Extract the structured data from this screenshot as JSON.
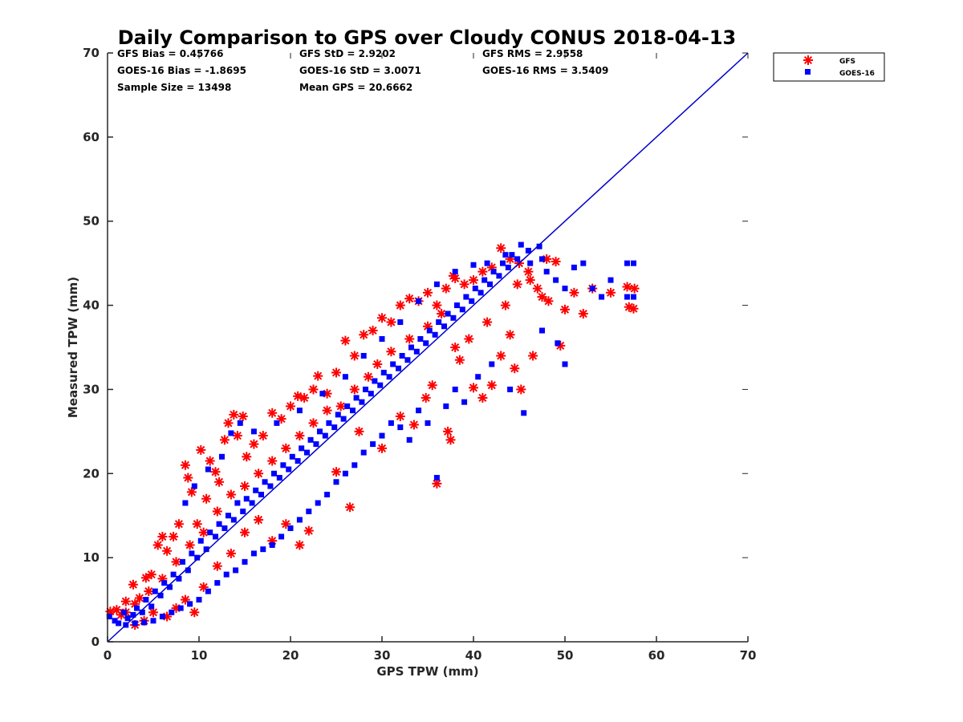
{
  "chart_data": {
    "type": "scatter",
    "title": "Daily Comparison to GPS over Cloudy CONUS 2018-04-13",
    "xlabel": "GPS TPW (mm)",
    "ylabel": "Measured TPW (mm)",
    "xlim": [
      0,
      70
    ],
    "ylim": [
      0,
      70
    ],
    "xticks": [
      "0",
      "10",
      "20",
      "30",
      "40",
      "50",
      "60",
      "70"
    ],
    "yticks": [
      "0",
      "10",
      "20",
      "30",
      "40",
      "50",
      "60",
      "70"
    ],
    "grid": false,
    "legend_position": "outside top-right",
    "stats": [
      "GFS Bias = 0.45766",
      "GFS StD = 2.9202",
      "GFS RMS = 2.9558",
      "GOES-16 Bias = -1.8695",
      "GOES-16 StD = 3.0071",
      "GOES-16 RMS = 3.5409",
      "Sample Size = 13498",
      "Mean GPS = 20.6662"
    ],
    "reference_line": {
      "x": [
        0,
        70
      ],
      "y": [
        0,
        70
      ],
      "color": "#0000cc"
    },
    "series": [
      {
        "name": "GFS",
        "marker": "asterisk",
        "color": "#ff0000",
        "points": [
          [
            0.3,
            3.6
          ],
          [
            1.0,
            3.8
          ],
          [
            1.5,
            3.2
          ],
          [
            2.0,
            4.8
          ],
          [
            2.8,
            6.8
          ],
          [
            3.0,
            2.0
          ],
          [
            3.5,
            5.2
          ],
          [
            4.2,
            7.6
          ],
          [
            4.8,
            8.0
          ],
          [
            5.5,
            11.5
          ],
          [
            6.0,
            12.5
          ],
          [
            6.5,
            10.8
          ],
          [
            7.2,
            12.5
          ],
          [
            7.8,
            14.0
          ],
          [
            8.5,
            21.0
          ],
          [
            8.8,
            19.5
          ],
          [
            9.2,
            17.8
          ],
          [
            9.8,
            14.0
          ],
          [
            10.2,
            22.8
          ],
          [
            10.8,
            17.0
          ],
          [
            11.2,
            21.5
          ],
          [
            11.8,
            20.2
          ],
          [
            12.2,
            19.0
          ],
          [
            12.8,
            24.0
          ],
          [
            13.2,
            26.0
          ],
          [
            13.8,
            27.0
          ],
          [
            14.2,
            24.5
          ],
          [
            14.8,
            26.8
          ],
          [
            15.2,
            22.0
          ],
          [
            16.0,
            23.5
          ],
          [
            17.0,
            24.5
          ],
          [
            18.0,
            27.2
          ],
          [
            19.0,
            26.5
          ],
          [
            20.0,
            28.0
          ],
          [
            20.8,
            29.2
          ],
          [
            21.5,
            29.0
          ],
          [
            22.5,
            30.0
          ],
          [
            23.0,
            31.6
          ],
          [
            24.0,
            29.5
          ],
          [
            25.0,
            32.0
          ],
          [
            26.0,
            35.8
          ],
          [
            27.0,
            34.0
          ],
          [
            28.0,
            36.5
          ],
          [
            29.0,
            37.0
          ],
          [
            30.0,
            38.5
          ],
          [
            31.0,
            38.0
          ],
          [
            32.0,
            40.0
          ],
          [
            33.0,
            40.8
          ],
          [
            34.0,
            40.5
          ],
          [
            35.0,
            41.5
          ],
          [
            36.0,
            40.0
          ],
          [
            37.0,
            42.0
          ],
          [
            38.0,
            43.2
          ],
          [
            39.0,
            42.5
          ],
          [
            40.0,
            43.0
          ],
          [
            41.0,
            44.0
          ],
          [
            42.0,
            44.5
          ],
          [
            43.0,
            46.8
          ],
          [
            44.0,
            45.5
          ],
          [
            45.0,
            45.0
          ],
          [
            46.0,
            44.0
          ],
          [
            47.0,
            42.0
          ],
          [
            48.0,
            45.5
          ],
          [
            49.0,
            45.2
          ],
          [
            50.0,
            39.5
          ],
          [
            51.0,
            41.5
          ],
          [
            52.0,
            39.0
          ],
          [
            53.0,
            42.0
          ],
          [
            55.0,
            41.5
          ],
          [
            57.0,
            39.8
          ],
          [
            57.5,
            39.6
          ],
          [
            56.8,
            42.2
          ],
          [
            57.6,
            42.0
          ],
          [
            49.5,
            35.2
          ],
          [
            46.5,
            34.0
          ],
          [
            45.2,
            30.0
          ],
          [
            44.5,
            32.5
          ],
          [
            42.0,
            30.5
          ],
          [
            41.0,
            29.0
          ],
          [
            40.0,
            30.2
          ],
          [
            38.5,
            33.5
          ],
          [
            37.5,
            24.0
          ],
          [
            37.2,
            25.0
          ],
          [
            36.0,
            18.8
          ],
          [
            35.5,
            30.5
          ],
          [
            34.8,
            29.0
          ],
          [
            33.5,
            25.8
          ],
          [
            32.0,
            26.8
          ],
          [
            30.0,
            23.0
          ],
          [
            27.5,
            25.0
          ],
          [
            26.5,
            16.0
          ],
          [
            25.0,
            20.2
          ],
          [
            22.0,
            13.2
          ],
          [
            21.0,
            11.5
          ],
          [
            19.5,
            14.0
          ],
          [
            18.0,
            12.0
          ],
          [
            16.5,
            14.5
          ],
          [
            15.0,
            13.0
          ],
          [
            13.5,
            10.5
          ],
          [
            12.0,
            9.0
          ],
          [
            10.5,
            6.5
          ],
          [
            9.5,
            3.5
          ],
          [
            8.5,
            5.0
          ],
          [
            7.5,
            4.0
          ],
          [
            6.5,
            3.0
          ],
          [
            5.0,
            3.5
          ],
          [
            4.0,
            2.5
          ],
          [
            37.8,
            43.5
          ],
          [
            36.5,
            39.0
          ],
          [
            35.0,
            37.5
          ],
          [
            33.0,
            36.0
          ],
          [
            31.0,
            34.5
          ],
          [
            29.5,
            33.0
          ],
          [
            28.5,
            31.5
          ],
          [
            27.0,
            30.0
          ],
          [
            25.5,
            28.0
          ],
          [
            24.0,
            27.5
          ],
          [
            22.5,
            26.0
          ],
          [
            21.0,
            24.5
          ],
          [
            19.5,
            23.0
          ],
          [
            18.0,
            21.5
          ],
          [
            16.5,
            20.0
          ],
          [
            15.0,
            18.5
          ],
          [
            13.5,
            17.5
          ],
          [
            12.0,
            15.5
          ],
          [
            10.5,
            13.0
          ],
          [
            9.0,
            11.5
          ],
          [
            7.5,
            9.5
          ],
          [
            6.0,
            7.5
          ],
          [
            4.5,
            6.0
          ],
          [
            3.0,
            4.5
          ],
          [
            2.0,
            3.5
          ],
          [
            39.5,
            36.0
          ],
          [
            41.5,
            38.0
          ],
          [
            43.5,
            40.0
          ],
          [
            44.8,
            42.5
          ],
          [
            46.2,
            43.0
          ],
          [
            47.5,
            41.0
          ],
          [
            48.2,
            40.5
          ],
          [
            43.0,
            34.0
          ],
          [
            44.0,
            36.5
          ],
          [
            38.0,
            35.0
          ]
        ]
      },
      {
        "name": "GOES-16",
        "marker": "square",
        "color": "#0000ff",
        "points": [
          [
            0.2,
            3.0
          ],
          [
            0.8,
            2.5
          ],
          [
            1.2,
            2.2
          ],
          [
            1.8,
            3.5
          ],
          [
            2.2,
            2.8
          ],
          [
            2.8,
            3.2
          ],
          [
            3.2,
            4.0
          ],
          [
            3.8,
            3.5
          ],
          [
            4.2,
            5.0
          ],
          [
            4.8,
            4.2
          ],
          [
            5.2,
            6.0
          ],
          [
            5.8,
            5.5
          ],
          [
            6.2,
            7.0
          ],
          [
            6.8,
            6.5
          ],
          [
            7.2,
            8.0
          ],
          [
            7.8,
            7.5
          ],
          [
            8.2,
            9.5
          ],
          [
            8.8,
            8.5
          ],
          [
            9.2,
            10.5
          ],
          [
            9.8,
            10.0
          ],
          [
            10.2,
            12.0
          ],
          [
            10.8,
            11.0
          ],
          [
            11.2,
            13.0
          ],
          [
            11.8,
            12.5
          ],
          [
            12.2,
            14.0
          ],
          [
            12.8,
            13.5
          ],
          [
            13.2,
            15.0
          ],
          [
            13.8,
            14.5
          ],
          [
            14.2,
            16.5
          ],
          [
            14.8,
            15.5
          ],
          [
            15.2,
            17.0
          ],
          [
            15.8,
            16.5
          ],
          [
            16.2,
            18.0
          ],
          [
            16.8,
            17.5
          ],
          [
            17.2,
            19.0
          ],
          [
            17.8,
            18.5
          ],
          [
            18.2,
            20.0
          ],
          [
            18.8,
            19.5
          ],
          [
            19.2,
            21.0
          ],
          [
            19.8,
            20.5
          ],
          [
            20.2,
            22.0
          ],
          [
            20.8,
            21.5
          ],
          [
            21.2,
            23.0
          ],
          [
            21.8,
            22.5
          ],
          [
            22.2,
            24.0
          ],
          [
            22.8,
            23.5
          ],
          [
            23.2,
            25.0
          ],
          [
            23.8,
            24.5
          ],
          [
            24.2,
            26.0
          ],
          [
            24.8,
            25.5
          ],
          [
            25.2,
            27.0
          ],
          [
            25.8,
            26.5
          ],
          [
            26.2,
            28.0
          ],
          [
            26.8,
            27.5
          ],
          [
            27.2,
            29.0
          ],
          [
            27.8,
            28.5
          ],
          [
            28.2,
            30.0
          ],
          [
            28.8,
            29.5
          ],
          [
            29.2,
            31.0
          ],
          [
            29.8,
            30.5
          ],
          [
            30.2,
            32.0
          ],
          [
            30.8,
            31.5
          ],
          [
            31.2,
            33.0
          ],
          [
            31.8,
            32.5
          ],
          [
            32.2,
            34.0
          ],
          [
            32.8,
            33.5
          ],
          [
            33.2,
            35.0
          ],
          [
            33.8,
            34.5
          ],
          [
            34.2,
            36.0
          ],
          [
            34.8,
            35.5
          ],
          [
            35.2,
            37.0
          ],
          [
            35.8,
            36.5
          ],
          [
            36.2,
            38.0
          ],
          [
            36.8,
            37.5
          ],
          [
            37.2,
            39.0
          ],
          [
            37.8,
            38.5
          ],
          [
            38.2,
            40.0
          ],
          [
            38.8,
            39.5
          ],
          [
            39.2,
            41.0
          ],
          [
            39.8,
            40.5
          ],
          [
            40.2,
            42.0
          ],
          [
            40.8,
            41.5
          ],
          [
            41.2,
            43.0
          ],
          [
            41.8,
            42.5
          ],
          [
            42.2,
            44.0
          ],
          [
            42.8,
            43.5
          ],
          [
            43.2,
            45.0
          ],
          [
            43.8,
            44.5
          ],
          [
            44.2,
            46.0
          ],
          [
            44.8,
            45.5
          ],
          [
            45.2,
            47.2
          ],
          [
            46.2,
            45.0
          ],
          [
            47.2,
            47.0
          ],
          [
            48.0,
            44.0
          ],
          [
            49.0,
            43.0
          ],
          [
            50.0,
            42.0
          ],
          [
            51.0,
            44.5
          ],
          [
            52.0,
            45.0
          ],
          [
            53.0,
            42.0
          ],
          [
            54.0,
            41.0
          ],
          [
            55.0,
            43.0
          ],
          [
            56.8,
            45.0
          ],
          [
            57.5,
            45.0
          ],
          [
            56.8,
            41.0
          ],
          [
            57.5,
            41.0
          ],
          [
            50.0,
            33.0
          ],
          [
            49.2,
            35.5
          ],
          [
            47.5,
            37.0
          ],
          [
            45.5,
            27.2
          ],
          [
            44.0,
            30.0
          ],
          [
            42.0,
            33.0
          ],
          [
            40.5,
            31.5
          ],
          [
            39.0,
            28.5
          ],
          [
            38.0,
            30.0
          ],
          [
            37.0,
            28.0
          ],
          [
            36.0,
            19.5
          ],
          [
            35.0,
            26.0
          ],
          [
            34.0,
            27.5
          ],
          [
            33.0,
            24.0
          ],
          [
            32.0,
            25.5
          ],
          [
            31.0,
            26.0
          ],
          [
            30.0,
            24.5
          ],
          [
            29.0,
            23.5
          ],
          [
            28.0,
            22.5
          ],
          [
            27.0,
            21.0
          ],
          [
            26.0,
            20.0
          ],
          [
            25.0,
            19.0
          ],
          [
            24.0,
            17.5
          ],
          [
            23.0,
            16.5
          ],
          [
            22.0,
            15.5
          ],
          [
            21.0,
            14.5
          ],
          [
            20.0,
            13.5
          ],
          [
            19.0,
            12.5
          ],
          [
            18.0,
            11.5
          ],
          [
            17.0,
            11.0
          ],
          [
            16.0,
            10.5
          ],
          [
            15.0,
            9.5
          ],
          [
            14.0,
            8.5
          ],
          [
            13.0,
            8.0
          ],
          [
            12.0,
            7.0
          ],
          [
            11.0,
            6.0
          ],
          [
            10.0,
            5.0
          ],
          [
            9.0,
            4.5
          ],
          [
            8.0,
            4.0
          ],
          [
            7.0,
            3.5
          ],
          [
            6.0,
            3.0
          ],
          [
            5.0,
            2.5
          ],
          [
            4.0,
            2.3
          ],
          [
            3.0,
            2.2
          ],
          [
            2.0,
            2.0
          ],
          [
            14.5,
            26.0
          ],
          [
            13.5,
            24.8
          ],
          [
            12.5,
            22.0
          ],
          [
            11.0,
            20.5
          ],
          [
            9.5,
            18.5
          ],
          [
            8.5,
            16.5
          ],
          [
            16.0,
            25.0
          ],
          [
            18.5,
            26.0
          ],
          [
            21.0,
            27.5
          ],
          [
            23.5,
            29.5
          ],
          [
            26.0,
            31.5
          ],
          [
            28.0,
            34.0
          ],
          [
            30.0,
            36.0
          ],
          [
            32.0,
            38.0
          ],
          [
            34.0,
            40.5
          ],
          [
            36.0,
            42.5
          ],
          [
            38.0,
            44.0
          ],
          [
            40.0,
            44.8
          ],
          [
            41.5,
            45.0
          ],
          [
            43.5,
            46.0
          ],
          [
            46.0,
            46.5
          ],
          [
            47.5,
            45.5
          ]
        ]
      }
    ]
  }
}
